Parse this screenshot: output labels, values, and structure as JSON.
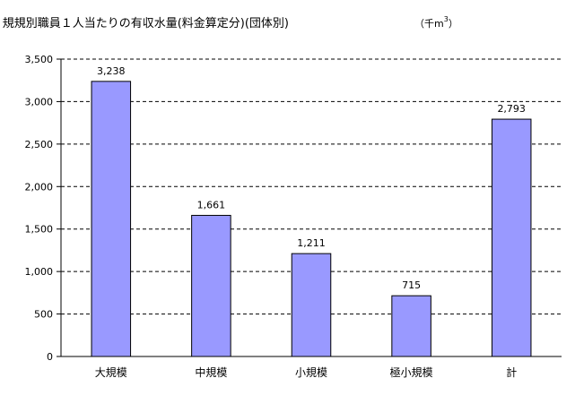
{
  "chart_data": {
    "type": "bar",
    "title": "規規別職員１人当たりの有収水量(料金算定分)(団体別)",
    "unit_prefix": "（千m",
    "unit_superscript": "3",
    "unit_suffix": "）",
    "categories": [
      "大規模",
      "中規模",
      "小規模",
      "極小規模",
      "計"
    ],
    "values": [
      3238,
      1661,
      1211,
      715,
      2793
    ],
    "value_labels": [
      "3,238",
      "1,661",
      "1,211",
      "715",
      "2,793"
    ],
    "ylim": [
      0,
      3500
    ],
    "yticks": [
      0,
      500,
      1000,
      1500,
      2000,
      2500,
      3000,
      3500
    ],
    "ytick_labels": [
      "0",
      "500",
      "1,000",
      "1,500",
      "2,000",
      "2,500",
      "3,000",
      "3,500"
    ],
    "grid": "horizontal dashed",
    "xlabel": "",
    "ylabel": "",
    "bar_color": "#9999ff",
    "bar_edge_color": "#000000"
  }
}
